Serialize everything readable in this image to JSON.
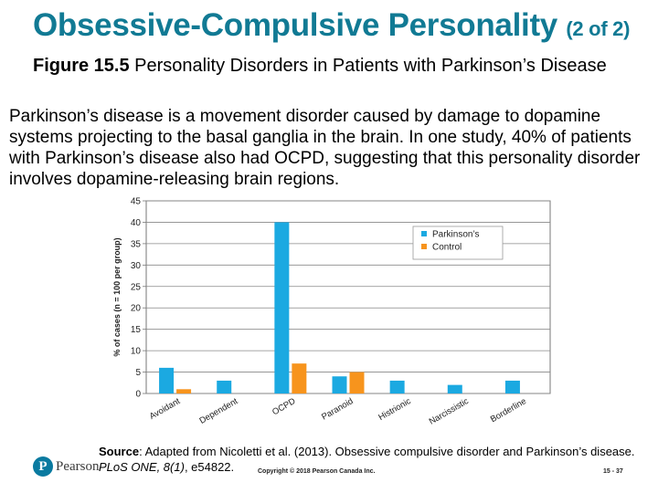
{
  "slide": {
    "title_main": "Obsessive-Compulsive Personality",
    "title_suffix": "(2 of 2)",
    "figure_label": "Figure 15.5",
    "figure_title": "Personality Disorders in Patients with Parkinson’s Disease",
    "body": "Parkinson’s disease is a movement disorder caused by damage to dopamine systems projecting to the basal ganglia in the brain. In one study, 40% of patients with Parkinson’s disease also had OCPD, suggesting that this personality disorder involves dopamine-releasing brain regions.",
    "source_label": "Source",
    "source_text": ": Adapted from Nicoletti et al. (2013). Obsessive compulsive disorder and Parkinson’s disease. ",
    "source_italic": "PLoS ONE, 8(1)",
    "source_tail": ", e54822.",
    "logo_text": "Pearson",
    "logo_letter": "P",
    "copyright": "Copyright © 2018 Pearson Canada Inc.",
    "page_number": "15 - 37",
    "colors": {
      "title": "#117a94",
      "parkinsons": "#1ba9e1",
      "control": "#f7941d"
    }
  },
  "chart_data": {
    "type": "bar",
    "categories": [
      "Avoidant",
      "Dependent",
      "OCPD",
      "Paranoid",
      "Histrionic",
      "Narcissistic",
      "Borderline"
    ],
    "series": [
      {
        "name": "Parkinson’s",
        "values": [
          6,
          3,
          40,
          4,
          3,
          2,
          3
        ],
        "color": "#1ba9e1"
      },
      {
        "name": "Control",
        "values": [
          1,
          0,
          7,
          5,
          0,
          0,
          0
        ],
        "color": "#f7941d"
      }
    ],
    "ylabel": "% of cases (n = 100 per group)",
    "xlabel": "",
    "ylim": [
      0,
      45
    ],
    "yticks": [
      0,
      5,
      10,
      15,
      20,
      25,
      30,
      35,
      40,
      45
    ],
    "grid": true,
    "legend": "top-right"
  }
}
